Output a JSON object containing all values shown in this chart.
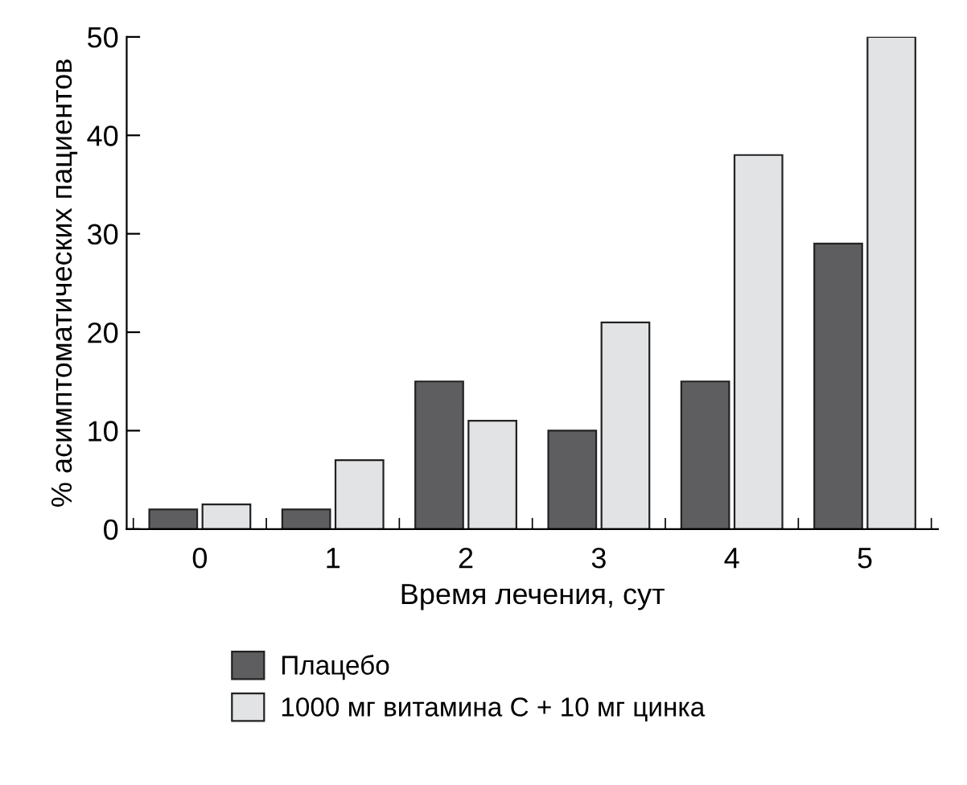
{
  "chart_data": {
    "type": "bar",
    "xlabel": "Время лечения, сут",
    "ylabel": "% асимптоматических пациентов",
    "categories": [
      "0",
      "1",
      "2",
      "3",
      "4",
      "5"
    ],
    "series": [
      {
        "name": "Плацебо",
        "color": "#5e5e60",
        "values": [
          2,
          2,
          15,
          10,
          15,
          29
        ]
      },
      {
        "name": "1000 мг витамина С + 10 мг цинка",
        "color": "#e2e3e5",
        "values": [
          2.5,
          7,
          11,
          21,
          38,
          50
        ]
      }
    ],
    "ylim": [
      0,
      50
    ],
    "yticks": [
      0,
      10,
      20,
      30,
      40,
      50
    ],
    "grid": false,
    "legend": "bottom"
  }
}
